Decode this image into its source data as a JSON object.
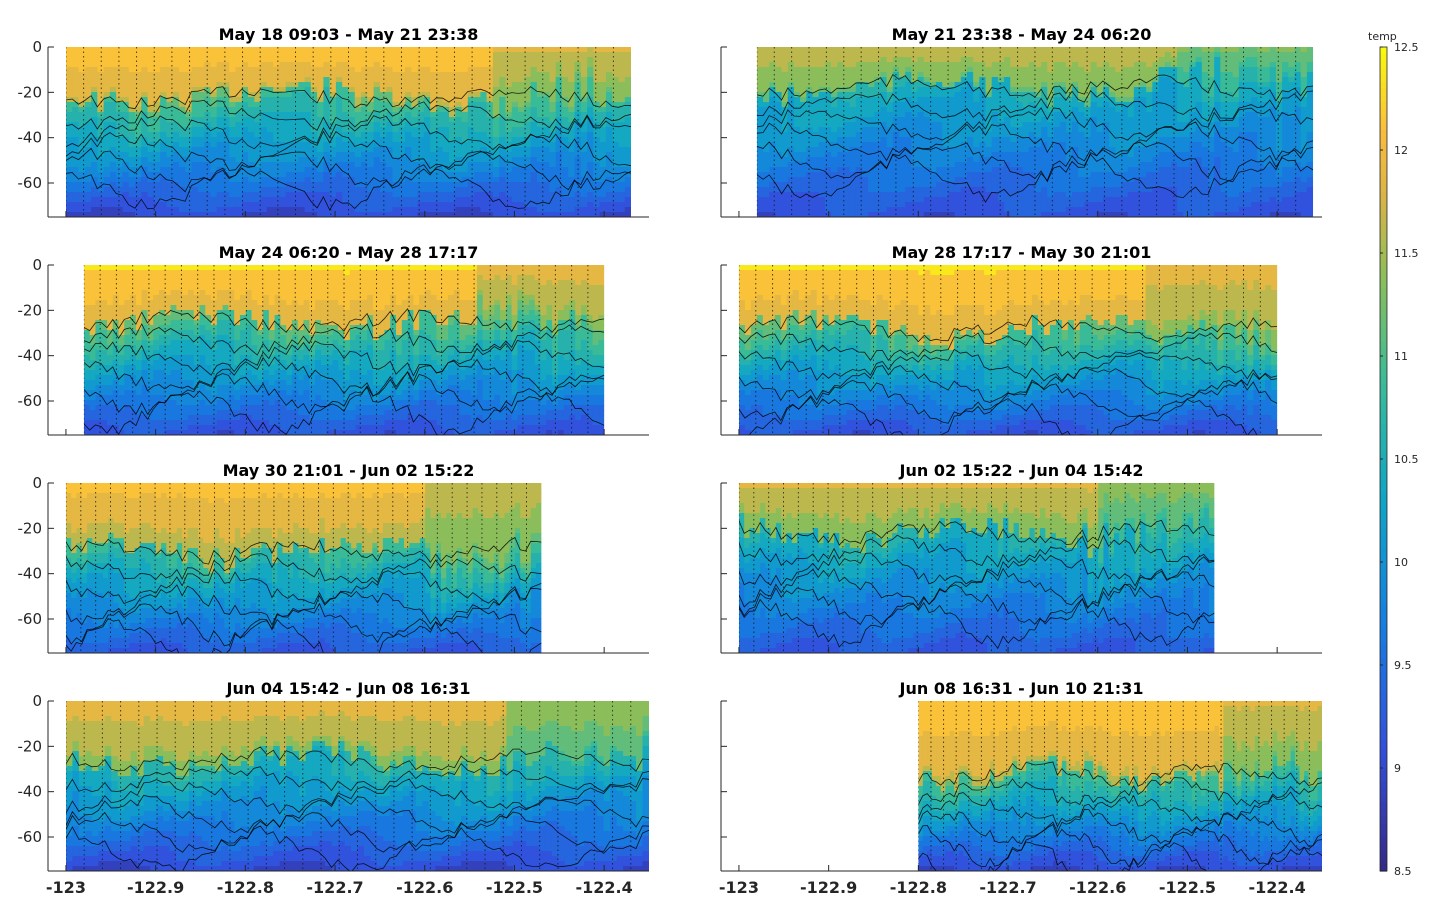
{
  "chart_data": {
    "type": "heatmap",
    "subtype": "filled-contour section plots (temperature vs longitude and depth)",
    "colormap": "parula",
    "x_ticks": [
      -123,
      -122.9,
      -122.8,
      -122.7,
      -122.6,
      -122.5,
      -122.4
    ],
    "x_tick_labels": [
      "-123",
      "-122.9",
      "-122.8",
      "-122.7",
      "-122.6",
      "-122.5",
      "-122.4"
    ],
    "xlim": [
      -123.02,
      -122.35
    ],
    "y_ticks": [
      0,
      -20,
      -40,
      -60
    ],
    "y_tick_labels": [
      "0",
      "-20",
      "-40",
      "-60"
    ],
    "ylim": [
      -75,
      0
    ],
    "colorbar": {
      "label": "temp",
      "ticks": [
        12.5,
        12,
        11.5,
        11,
        10.5,
        10,
        9.5,
        9,
        8.5
      ],
      "tick_labels": [
        "12.5",
        "12",
        "11.5",
        "11",
        "10.5",
        "10",
        "9.5",
        "9",
        "8.5"
      ],
      "range": [
        8.5,
        12.5
      ]
    },
    "panels": [
      {
        "title": "May 18 09:03 - May 21 23:38",
        "x_extent": [
          -123.0,
          -122.37
        ],
        "mixed_layer_depth": -22,
        "surface_temp": 12.2,
        "bottom_temp": 9.0
      },
      {
        "title": "May 21 23:38 - May 24 06:20",
        "x_extent": [
          -122.98,
          -122.36
        ],
        "mixed_layer_depth": -18,
        "surface_temp": 11.7,
        "bottom_temp": 9.1
      },
      {
        "title": "May 24 06:20 - May 28 17:17",
        "x_extent": [
          -122.98,
          -122.4
        ],
        "mixed_layer_depth": -25,
        "surface_temp": 12.3,
        "bottom_temp": 9.1
      },
      {
        "title": "May 28 17:17 - May 30 21:01",
        "x_extent": [
          -123.0,
          -122.4
        ],
        "mixed_layer_depth": -28,
        "surface_temp": 12.3,
        "bottom_temp": 9.1
      },
      {
        "title": "May 30 21:01 - Jun 02 15:22",
        "x_extent": [
          -123.0,
          -122.47
        ],
        "mixed_layer_depth": -30,
        "surface_temp": 12.1,
        "bottom_temp": 9.2
      },
      {
        "title": "Jun 02 15:22 - Jun 04 15:42",
        "x_extent": [
          -123.0,
          -122.47
        ],
        "mixed_layer_depth": -22,
        "surface_temp": 11.8,
        "bottom_temp": 9.2
      },
      {
        "title": "Jun 04 15:42 - Jun 08 16:31",
        "x_extent": [
          -123.0,
          -122.35
        ],
        "mixed_layer_depth": -26,
        "surface_temp": 11.9,
        "bottom_temp": 9.0
      },
      {
        "title": "Jun 08 16:31 - Jun 10 21:31",
        "x_extent": [
          -122.8,
          -122.35
        ],
        "mixed_layer_depth": -32,
        "surface_temp": 12.2,
        "bottom_temp": 9.0
      }
    ]
  }
}
